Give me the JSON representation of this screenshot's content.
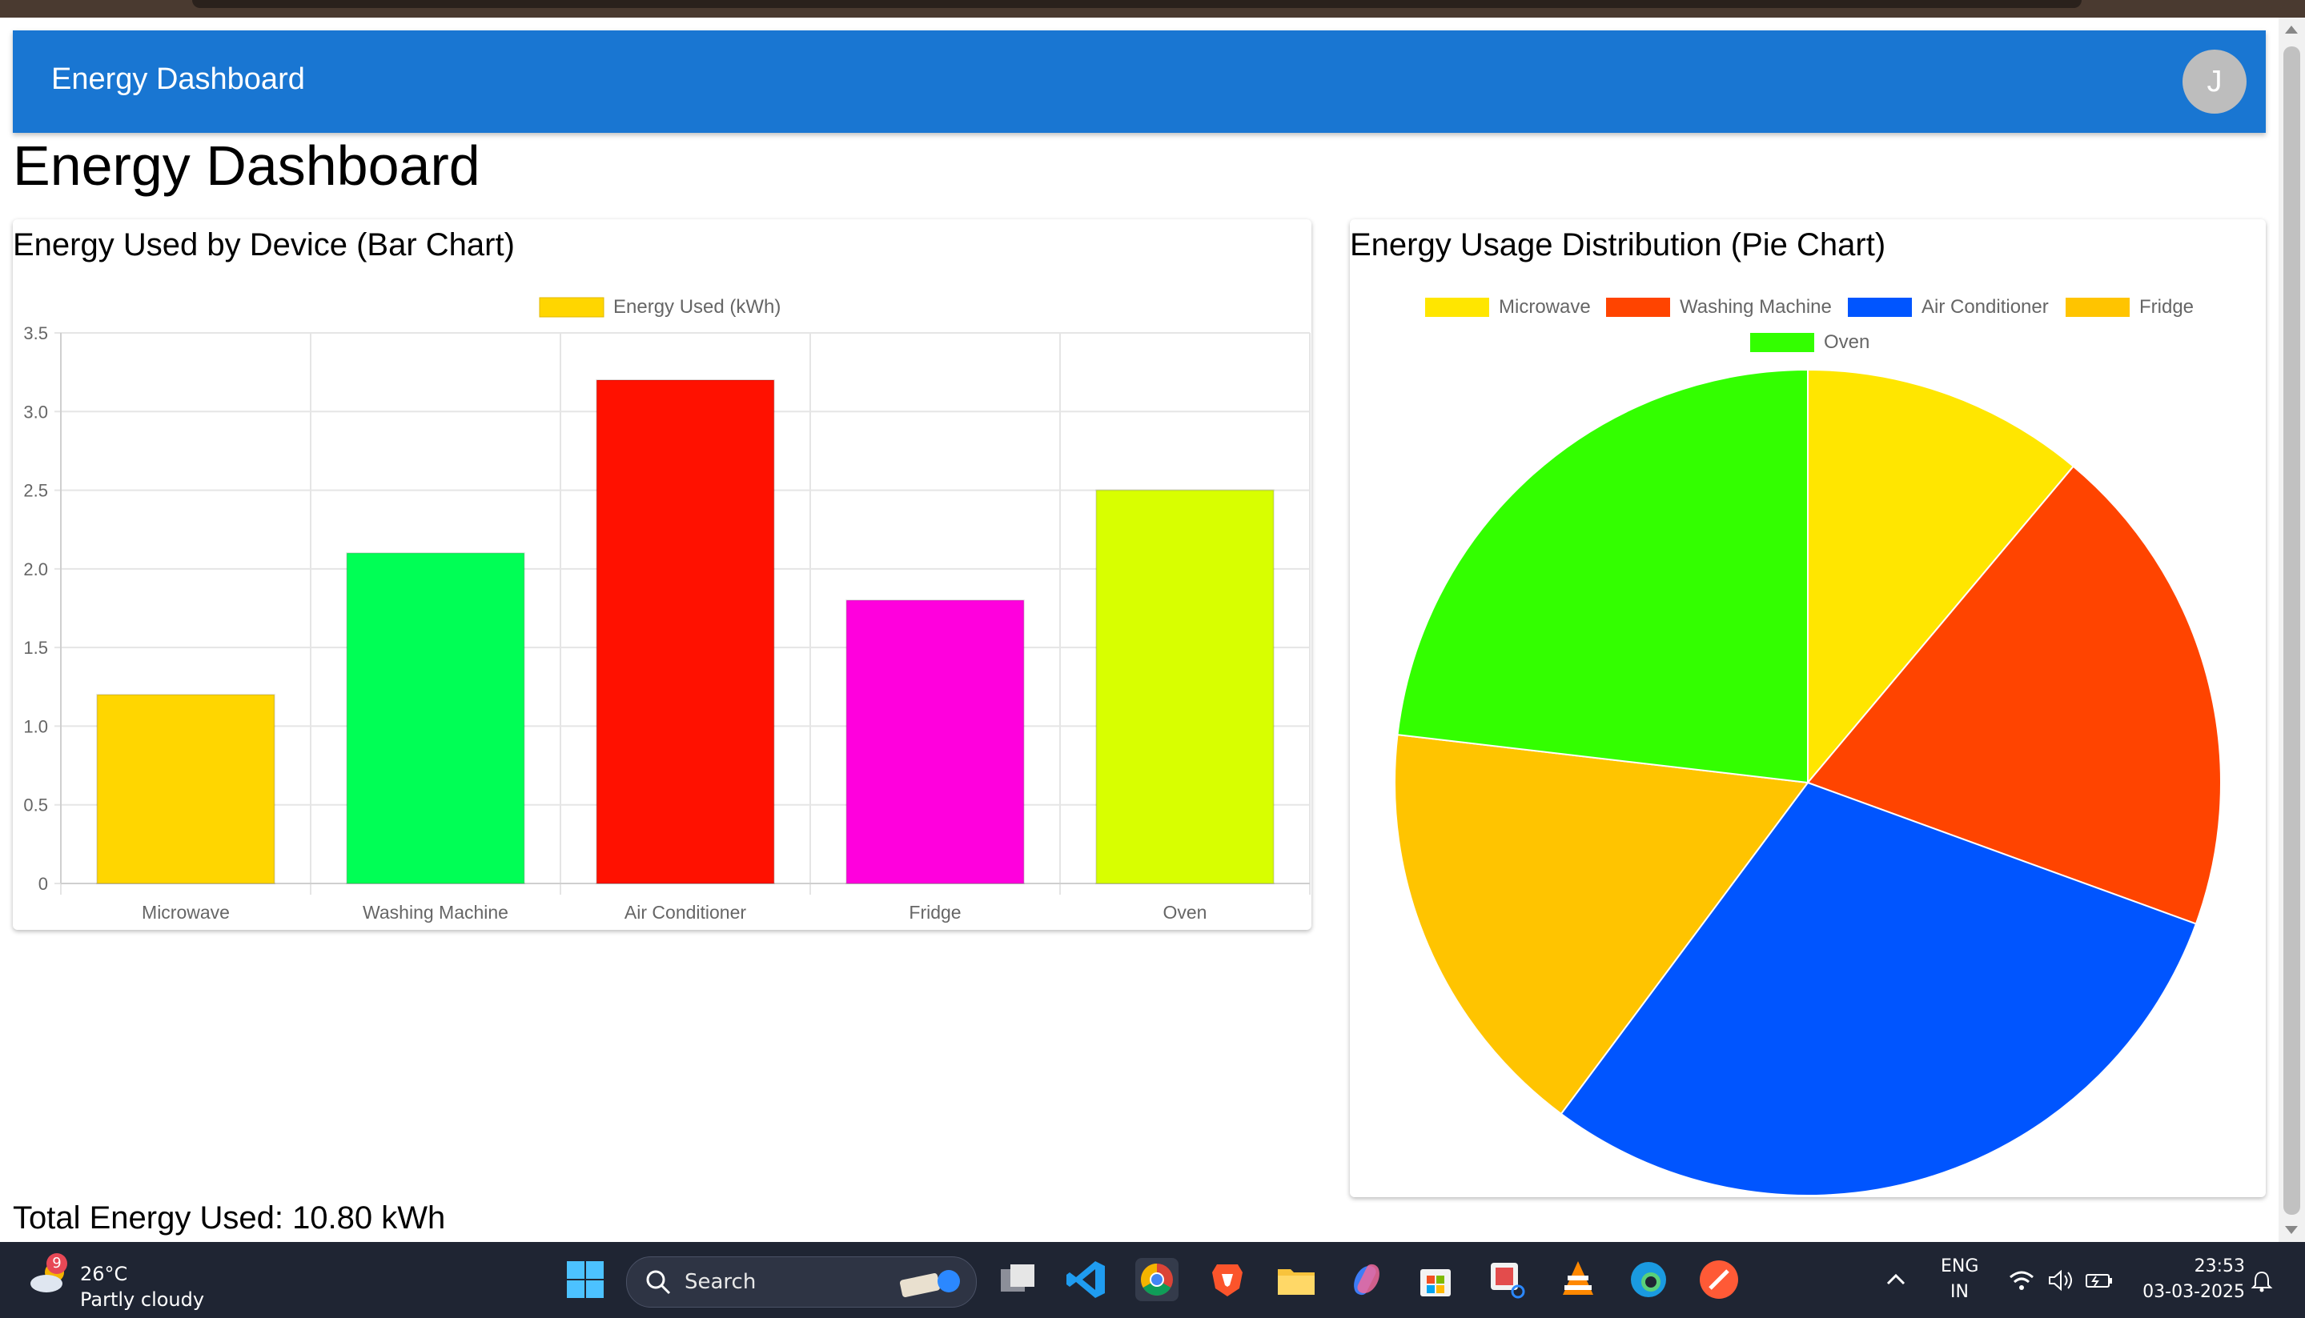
{
  "header": {
    "title": "Energy Dashboard",
    "avatar_letter": "J",
    "bg_color": "#1976d2"
  },
  "page": {
    "heading": "Energy Dashboard",
    "total_text": "Total Energy Used: 10.80 kWh"
  },
  "bar_card": {
    "title": "Energy Used by Device (Bar Chart)"
  },
  "pie_card": {
    "title": "Energy Usage Distribution (Pie Chart)"
  },
  "chart_data": [
    {
      "type": "bar",
      "title": "Energy Used by Device (Bar Chart)",
      "legend": [
        "Energy Used (kWh)"
      ],
      "legend_color": "#ffd600",
      "legend_position": "top",
      "categories": [
        "Microwave",
        "Washing Machine",
        "Air Conditioner",
        "Fridge",
        "Oven"
      ],
      "values": [
        1.2,
        2.1,
        3.2,
        1.8,
        2.5
      ],
      "colors": [
        "#ffd600",
        "#00ff55",
        "#ff1100",
        "#ff00dd",
        "#d8ff00"
      ],
      "ylim": [
        0,
        3.5
      ],
      "yticks": [
        "0",
        "0.5",
        "1.0",
        "1.5",
        "2.0",
        "2.5",
        "3.0",
        "3.5"
      ],
      "grid": true
    },
    {
      "type": "pie",
      "title": "Energy Usage Distribution (Pie Chart)",
      "legend_position": "top",
      "labels": [
        "Microwave",
        "Washing Machine",
        "Air Conditioner",
        "Fridge",
        "Oven"
      ],
      "values": [
        1.2,
        2.1,
        3.2,
        1.8,
        2.5
      ],
      "colors": [
        "#ffe600",
        "#ff4400",
        "#0055ff",
        "#ffc400",
        "#33ff00"
      ]
    }
  ],
  "taskbar": {
    "weather_badge": "9",
    "temperature": "26°C",
    "condition": "Partly cloudy",
    "search_label": "Search",
    "language_line1": "ENG",
    "language_line2": "IN",
    "time": "23:53",
    "date": "03-03-2025",
    "apps": [
      "windows-start",
      "search",
      "task-view",
      "vs-code",
      "chrome",
      "brave",
      "file-explorer",
      "copilot",
      "microsoft-store",
      "snipping-tool",
      "vlc",
      "edge",
      "app-orange"
    ]
  }
}
